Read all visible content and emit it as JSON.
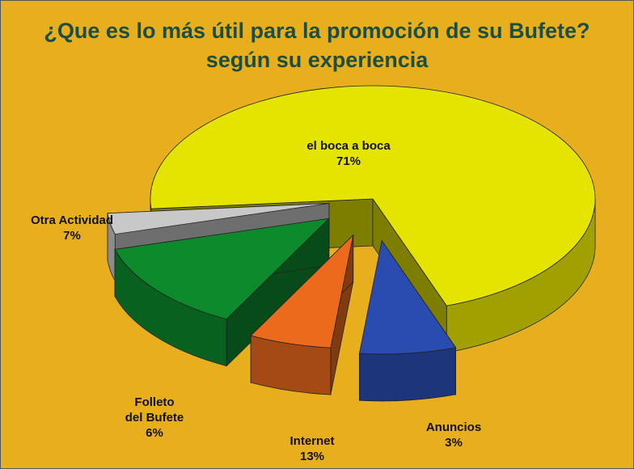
{
  "chart_data": {
    "type": "pie3d",
    "title": "¿Que es lo más útil para la promoción de su Bufete?",
    "subtitle": "según su experiencia",
    "categories": [
      "el boca a boca",
      "Otra Actividad",
      "Folleto del Bufete",
      "Internet",
      "Anuncios"
    ],
    "values": [
      71,
      7,
      6,
      13,
      3
    ],
    "value_labels": [
      "71%",
      "7%",
      "6%",
      "13%",
      "3%"
    ],
    "colors": [
      "#e4e400",
      "#2a4cb0",
      "#ec6a1c",
      "#0c8a2c",
      "#c8c8c8"
    ]
  }
}
